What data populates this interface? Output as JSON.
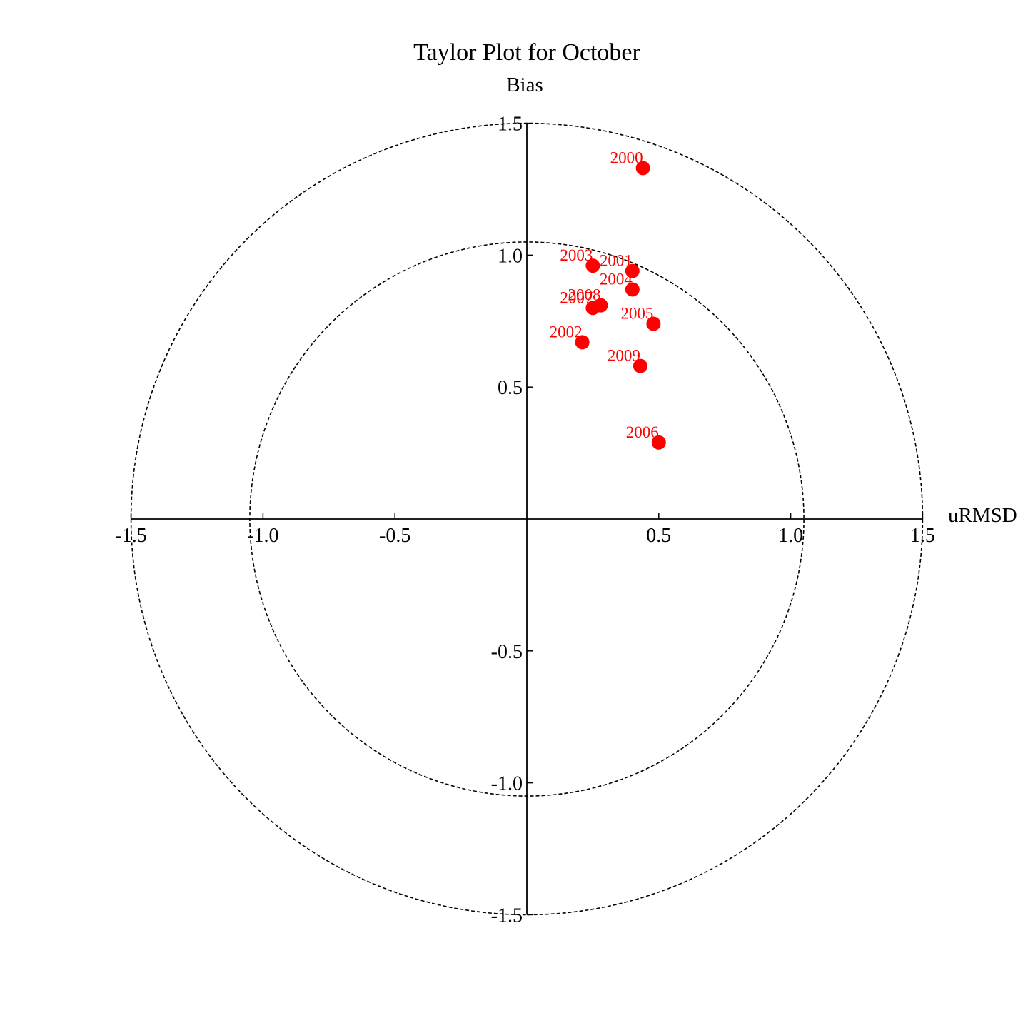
{
  "chart_data": {
    "type": "scatter",
    "title": "Taylor Plot for October",
    "xlabel": "uRMSD",
    "ylabel": "Bias",
    "xlim": [
      -1.5,
      1.5
    ],
    "ylim": [
      -1.5,
      1.5
    ],
    "x_ticks": [
      "-1.5",
      "-1.0",
      "-0.5",
      "0.5",
      "1.0",
      "1.5"
    ],
    "y_ticks": [
      "1.5",
      "1.0",
      "0.5",
      "-0.5",
      "-1.0",
      "-1.5"
    ],
    "x_tick_values": [
      -1.5,
      -1.0,
      -0.5,
      0.5,
      1.0,
      1.5
    ],
    "y_tick_values": [
      1.5,
      1.0,
      0.5,
      -0.5,
      -1.0,
      -1.5
    ],
    "reference_circles": [
      1.05,
      1.5
    ],
    "grid": false,
    "marker_color": "#ff0000",
    "points": [
      {
        "label": "2000",
        "x": 0.44,
        "y": 1.33
      },
      {
        "label": "2001",
        "x": 0.4,
        "y": 0.94
      },
      {
        "label": "2002",
        "x": 0.21,
        "y": 0.67
      },
      {
        "label": "2003",
        "x": 0.25,
        "y": 0.96
      },
      {
        "label": "2004",
        "x": 0.4,
        "y": 0.87
      },
      {
        "label": "2005",
        "x": 0.48,
        "y": 0.74
      },
      {
        "label": "2006",
        "x": 0.5,
        "y": 0.29
      },
      {
        "label": "2007",
        "x": 0.25,
        "y": 0.8
      },
      {
        "label": "2008",
        "x": 0.28,
        "y": 0.81
      },
      {
        "label": "2009",
        "x": 0.43,
        "y": 0.58
      }
    ]
  }
}
